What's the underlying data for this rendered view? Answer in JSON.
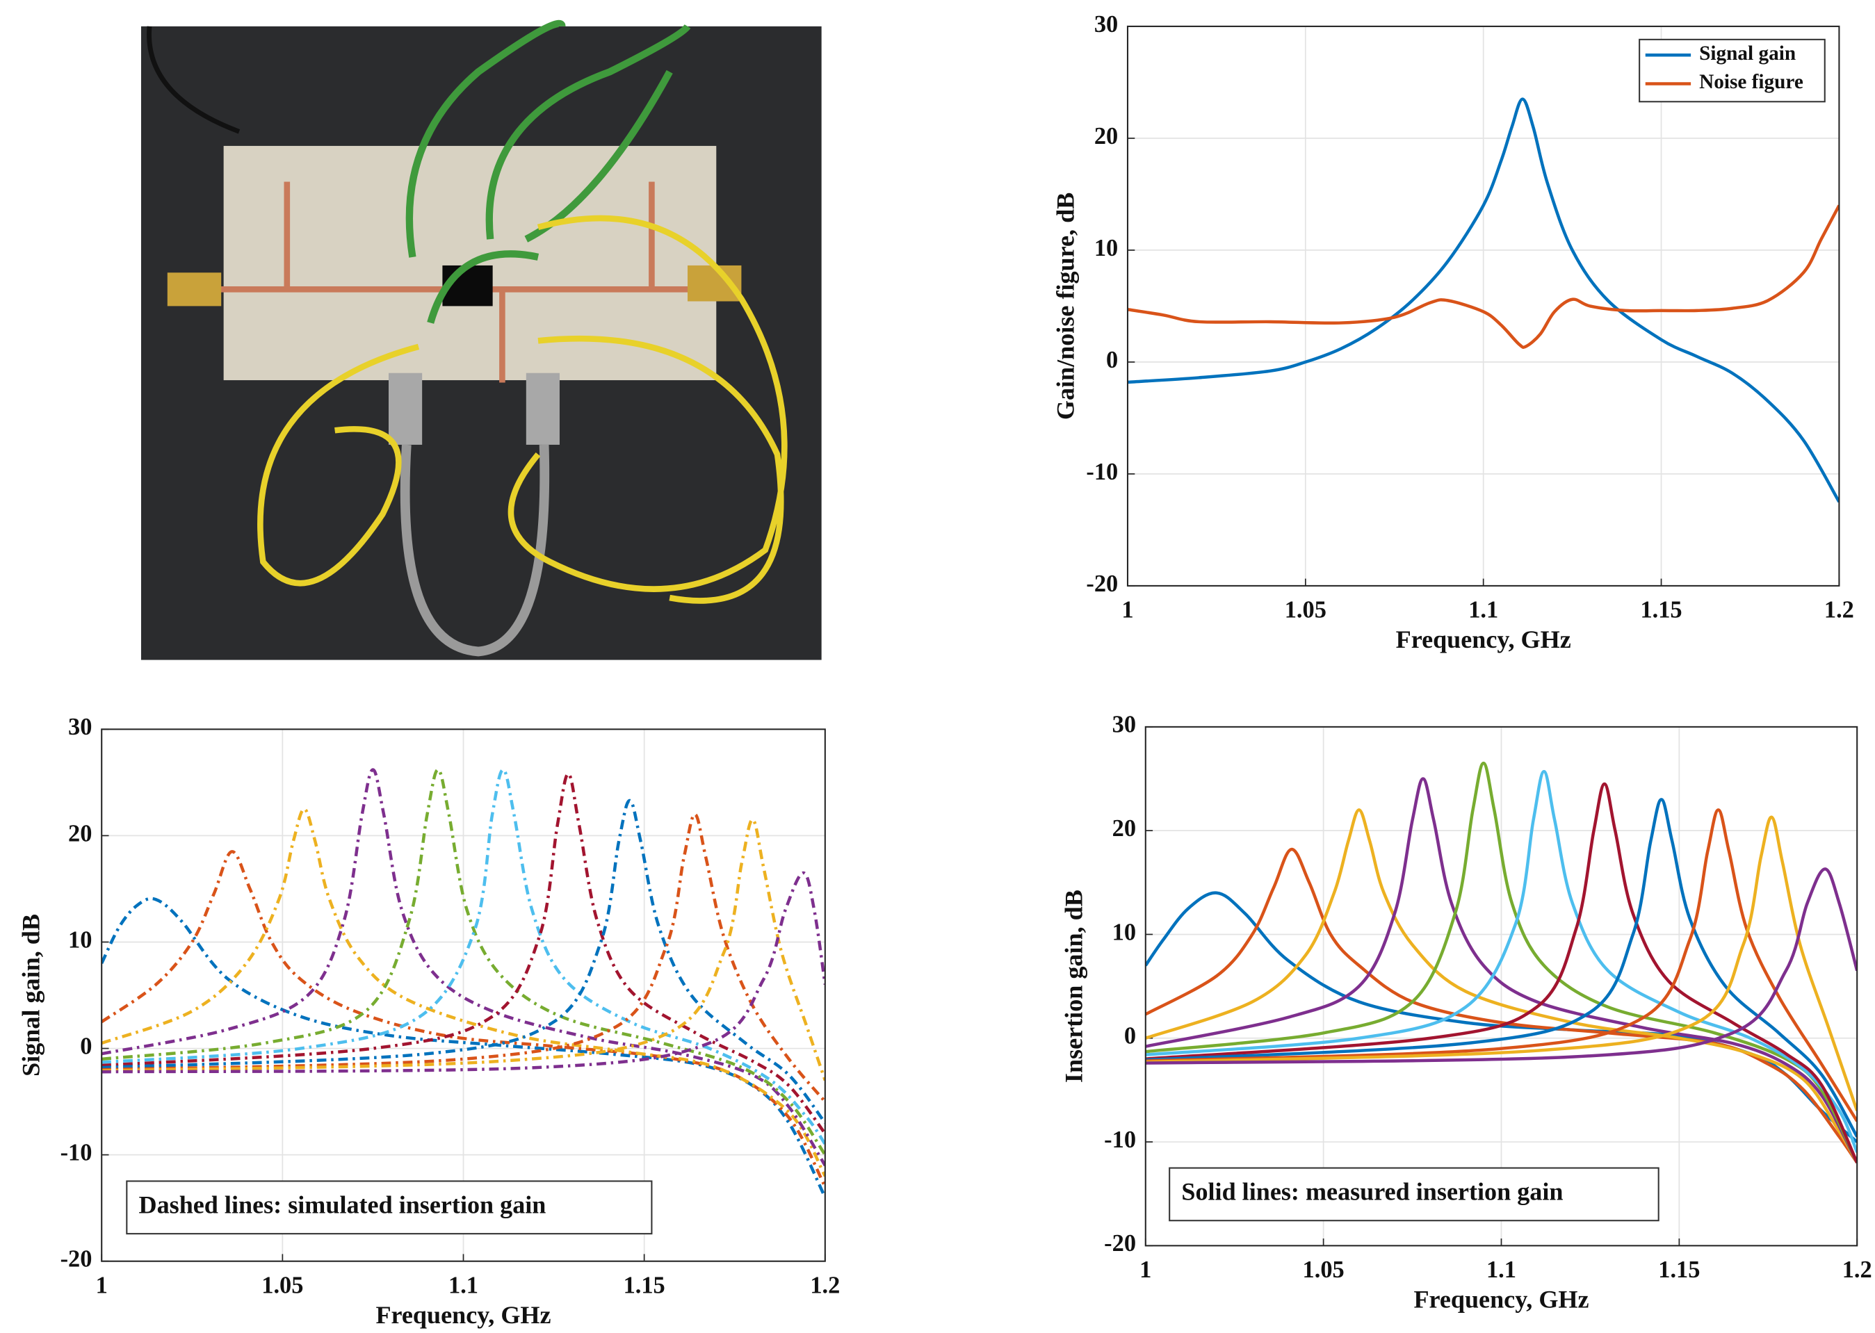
{
  "chart_data": [
    {
      "type": "line",
      "xlabel": "Frequency, GHz",
      "ylabel": "Gain/noise figure, dB",
      "xlim": [
        1,
        1.2
      ],
      "ylim": [
        -20,
        30
      ],
      "xticks": [
        1,
        1.05,
        1.1,
        1.15,
        1.2
      ],
      "yticks": [
        -20,
        -10,
        0,
        10,
        20,
        30
      ],
      "grid": true,
      "legend": "upper right",
      "series": [
        {
          "name": "Signal gain",
          "color": "#0072BD",
          "x": [
            1,
            1.02,
            1.04,
            1.05,
            1.06,
            1.07,
            1.08,
            1.09,
            1.1,
            1.105,
            1.108,
            1.111,
            1.114,
            1.118,
            1.125,
            1.135,
            1.15,
            1.16,
            1.17,
            1.18,
            1.19,
            1.2
          ],
          "values": [
            -1.8,
            -1.4,
            -0.8,
            0,
            1.2,
            3,
            5.5,
            9,
            14,
            18,
            21,
            23.5,
            21,
            16,
            10,
            5.5,
            2,
            0.5,
            -1,
            -3.5,
            -7,
            -12.5
          ]
        },
        {
          "name": "Noise figure",
          "color": "#D95319",
          "x": [
            1,
            1.01,
            1.02,
            1.04,
            1.06,
            1.075,
            1.085,
            1.09,
            1.1,
            1.105,
            1.11,
            1.112,
            1.116,
            1.12,
            1.125,
            1.13,
            1.14,
            1.15,
            1.16,
            1.17,
            1.18,
            1.19,
            1.195,
            1.2
          ],
          "values": [
            4.7,
            4.2,
            3.6,
            3.6,
            3.5,
            4,
            5.3,
            5.5,
            4.5,
            3.3,
            1.6,
            1.4,
            2.5,
            4.5,
            5.6,
            5,
            4.6,
            4.6,
            4.6,
            4.8,
            5.5,
            8,
            11,
            14
          ]
        }
      ]
    },
    {
      "type": "line",
      "line_style": "dashed",
      "xlabel": "Frequency, GHz",
      "ylabel": "Signal gain, dB",
      "annotation": "Dashed lines: simulated insertion gain",
      "xlim": [
        1,
        1.2
      ],
      "ylim": [
        -20,
        30
      ],
      "xticks": [
        1,
        1.05,
        1.1,
        1.15,
        1.2
      ],
      "yticks": [
        -20,
        -10,
        0,
        10,
        20,
        30
      ],
      "grid": true,
      "series": [
        {
          "color": "#0072BD",
          "x": [
            1,
            1.005,
            1.01,
            1.015,
            1.022,
            1.035,
            1.055,
            1.08,
            1.11,
            1.14,
            1.165,
            1.18,
            1.19,
            1.2
          ],
          "values": [
            8,
            11.5,
            13.5,
            14,
            12,
            6.5,
            3,
            1.2,
            0.3,
            -0.5,
            -1.5,
            -3.5,
            -7,
            -14
          ]
        },
        {
          "color": "#D95319",
          "x": [
            1,
            1.015,
            1.025,
            1.031,
            1.036,
            1.041,
            1.047,
            1.055,
            1.07,
            1.095,
            1.125,
            1.155,
            1.175,
            1.19,
            1.2
          ],
          "values": [
            2.5,
            6,
            10,
            14.5,
            18.5,
            15,
            10,
            6.5,
            3.5,
            1.2,
            0.2,
            -0.8,
            -2.5,
            -6.5,
            -13
          ]
        },
        {
          "color": "#EDB120",
          "x": [
            1,
            1.025,
            1.04,
            1.049,
            1.053,
            1.056,
            1.059,
            1.063,
            1.071,
            1.085,
            1.115,
            1.145,
            1.17,
            1.19,
            1.2
          ],
          "values": [
            0.5,
            3.5,
            8,
            14,
            19.5,
            22.5,
            19.5,
            14,
            8.5,
            4.5,
            1.2,
            -0.3,
            -1.8,
            -6,
            -12
          ]
        },
        {
          "color": "#7E2F8E",
          "x": [
            1,
            1.035,
            1.057,
            1.067,
            1.072,
            1.075,
            1.078,
            1.083,
            1.092,
            1.108,
            1.135,
            1.16,
            1.18,
            1.19,
            1.2
          ],
          "values": [
            -0.5,
            1.8,
            5,
            12,
            22,
            26.2,
            22,
            13,
            7,
            3.5,
            1,
            -0.5,
            -2.5,
            -5.5,
            -11
          ]
        },
        {
          "color": "#77AC30",
          "x": [
            1,
            1.045,
            1.073,
            1.085,
            1.09,
            1.093,
            1.096,
            1.101,
            1.11,
            1.127,
            1.155,
            1.177,
            1.19,
            1.2
          ],
          "values": [
            -1,
            0.5,
            3.5,
            12,
            22,
            26.2,
            22,
            13,
            7,
            3,
            0.5,
            -1.8,
            -5,
            -10
          ]
        },
        {
          "color": "#4DBEEE",
          "x": [
            1,
            1.055,
            1.088,
            1.103,
            1.108,
            1.111,
            1.114,
            1.119,
            1.128,
            1.146,
            1.168,
            1.185,
            1.195,
            1.2
          ],
          "values": [
            -1.3,
            0,
            3,
            11,
            22,
            26.2,
            22,
            13,
            6.5,
            2.5,
            0,
            -3,
            -6.5,
            -9
          ]
        },
        {
          "color": "#A2142F",
          "x": [
            1,
            1.075,
            1.108,
            1.121,
            1.126,
            1.129,
            1.132,
            1.137,
            1.146,
            1.164,
            1.18,
            1.19,
            1.2
          ],
          "values": [
            -1.6,
            0,
            3,
            10.5,
            21,
            25.8,
            21,
            12,
            5.5,
            1.5,
            -1.2,
            -3.5,
            -8
          ]
        },
        {
          "color": "#0072BD",
          "x": [
            1,
            1.09,
            1.125,
            1.138,
            1.143,
            1.146,
            1.149,
            1.154,
            1.163,
            1.178,
            1.19,
            1.2
          ],
          "values": [
            -1.8,
            -0.5,
            2.5,
            10,
            19.5,
            23.3,
            19.5,
            11.5,
            5,
            0.5,
            -2.5,
            -7
          ]
        },
        {
          "color": "#D95319",
          "x": [
            1,
            1.1,
            1.142,
            1.156,
            1.161,
            1.164,
            1.167,
            1.172,
            1.18,
            1.19,
            1.2
          ],
          "values": [
            -2,
            -1,
            2,
            9.5,
            18,
            22,
            18,
            10.5,
            4,
            -1,
            -5
          ]
        },
        {
          "color": "#EDB120",
          "x": [
            1,
            1.11,
            1.157,
            1.172,
            1.177,
            1.18,
            1.183,
            1.188,
            1.195,
            1.2
          ],
          "values": [
            -2.1,
            -1.2,
            1.5,
            9,
            17.5,
            21.5,
            17,
            9,
            2,
            -3
          ]
        },
        {
          "color": "#7E2F8E",
          "x": [
            1,
            1.12,
            1.168,
            1.183,
            1.189,
            1.194,
            1.197,
            1.2
          ],
          "values": [
            -2.2,
            -1.8,
            0.5,
            6.5,
            13,
            16.5,
            13,
            6
          ]
        }
      ]
    },
    {
      "type": "line",
      "xlabel": "Frequency, GHz",
      "ylabel": "Insertion gain, dB",
      "annotation": "Solid lines: measured insertion gain",
      "xlim": [
        1,
        1.2
      ],
      "ylim": [
        -20,
        30
      ],
      "xticks": [
        1,
        1.05,
        1.1,
        1.15,
        1.2
      ],
      "yticks": [
        -20,
        -10,
        0,
        10,
        20,
        30
      ],
      "grid": true,
      "series": [
        {
          "color": "#0072BD",
          "x": [
            1,
            1.005,
            1.012,
            1.02,
            1.028,
            1.04,
            1.06,
            1.09,
            1.12,
            1.15,
            1.17,
            1.18,
            1.19,
            1.2
          ],
          "values": [
            7,
            9.5,
            12.5,
            14,
            12,
            7.5,
            3.5,
            1.5,
            0.8,
            0.2,
            -1.5,
            -3.5,
            -7,
            -10
          ]
        },
        {
          "color": "#D95319",
          "x": [
            1,
            1.02,
            1.03,
            1.036,
            1.041,
            1.046,
            1.052,
            1.06,
            1.075,
            1.1,
            1.13,
            1.16,
            1.175,
            1.185,
            1.195,
            1.2
          ],
          "values": [
            2.3,
            6,
            10,
            14.5,
            18.2,
            15,
            10,
            7,
            3.5,
            1.5,
            0.5,
            -0.5,
            -2.5,
            -5,
            -9.5,
            -12
          ]
        },
        {
          "color": "#EDB120",
          "x": [
            1,
            1.03,
            1.045,
            1.053,
            1.057,
            1.06,
            1.063,
            1.067,
            1.075,
            1.09,
            1.12,
            1.15,
            1.17,
            1.185,
            1.195,
            1.2
          ],
          "values": [
            0,
            3.5,
            8,
            14,
            19,
            22,
            19,
            14,
            9,
            4.5,
            1.5,
            0,
            -1.5,
            -4,
            -9,
            -12
          ]
        },
        {
          "color": "#7E2F8E",
          "x": [
            1,
            1.04,
            1.06,
            1.07,
            1.075,
            1.078,
            1.081,
            1.086,
            1.095,
            1.11,
            1.14,
            1.165,
            1.18,
            1.19,
            1.2
          ],
          "values": [
            -0.8,
            2,
            5,
            12,
            21,
            25,
            21,
            13,
            7,
            3.5,
            1,
            -0.5,
            -2.5,
            -5.5,
            -12
          ]
        },
        {
          "color": "#77AC30",
          "x": [
            1,
            1.05,
            1.075,
            1.087,
            1.092,
            1.095,
            1.098,
            1.103,
            1.112,
            1.13,
            1.16,
            1.18,
            1.19,
            1.2
          ],
          "values": [
            -1.3,
            0.5,
            3.5,
            12,
            22,
            26.5,
            22,
            13,
            7,
            3,
            0.5,
            -2,
            -5,
            -12
          ]
        },
        {
          "color": "#4DBEEE",
          "x": [
            1,
            1.06,
            1.09,
            1.104,
            1.109,
            1.112,
            1.115,
            1.12,
            1.13,
            1.15,
            1.17,
            1.185,
            1.195,
            1.2
          ],
          "values": [
            -1.6,
            0,
            3,
            11,
            21,
            25.7,
            21,
            13,
            6.5,
            2.5,
            0,
            -3,
            -7,
            -11
          ]
        },
        {
          "color": "#A2142F",
          "x": [
            1,
            1.08,
            1.11,
            1.121,
            1.126,
            1.129,
            1.132,
            1.137,
            1.147,
            1.165,
            1.18,
            1.19,
            1.2
          ],
          "values": [
            -2,
            0,
            3,
            10.5,
            20,
            24.5,
            20,
            12,
            5.5,
            1.5,
            -1.5,
            -4.5,
            -12
          ]
        },
        {
          "color": "#0072BD",
          "x": [
            1,
            1.09,
            1.125,
            1.137,
            1.142,
            1.145,
            1.148,
            1.153,
            1.163,
            1.178,
            1.19,
            1.2
          ],
          "values": [
            -2.1,
            -0.5,
            2.5,
            10,
            19,
            23,
            19,
            11.5,
            5,
            0.5,
            -3.5,
            -9.5
          ]
        },
        {
          "color": "#D95319",
          "x": [
            1,
            1.1,
            1.14,
            1.153,
            1.158,
            1.161,
            1.164,
            1.169,
            1.178,
            1.19,
            1.2
          ],
          "values": [
            -2.2,
            -1,
            2,
            9.5,
            18,
            22,
            18,
            10.5,
            4,
            -2.5,
            -8
          ]
        },
        {
          "color": "#EDB120",
          "x": [
            1,
            1.11,
            1.155,
            1.168,
            1.173,
            1.176,
            1.179,
            1.184,
            1.192,
            1.2
          ],
          "values": [
            -2.3,
            -1.2,
            1.5,
            9,
            17.5,
            21.3,
            17,
            9,
            1,
            -7
          ]
        },
        {
          "color": "#7E2F8E",
          "x": [
            1,
            1.12,
            1.165,
            1.18,
            1.186,
            1.191,
            1.195,
            1.2
          ],
          "values": [
            -2.4,
            -1.8,
            0.5,
            6.5,
            13,
            16.3,
            13,
            6.5
          ]
        }
      ]
    }
  ]
}
